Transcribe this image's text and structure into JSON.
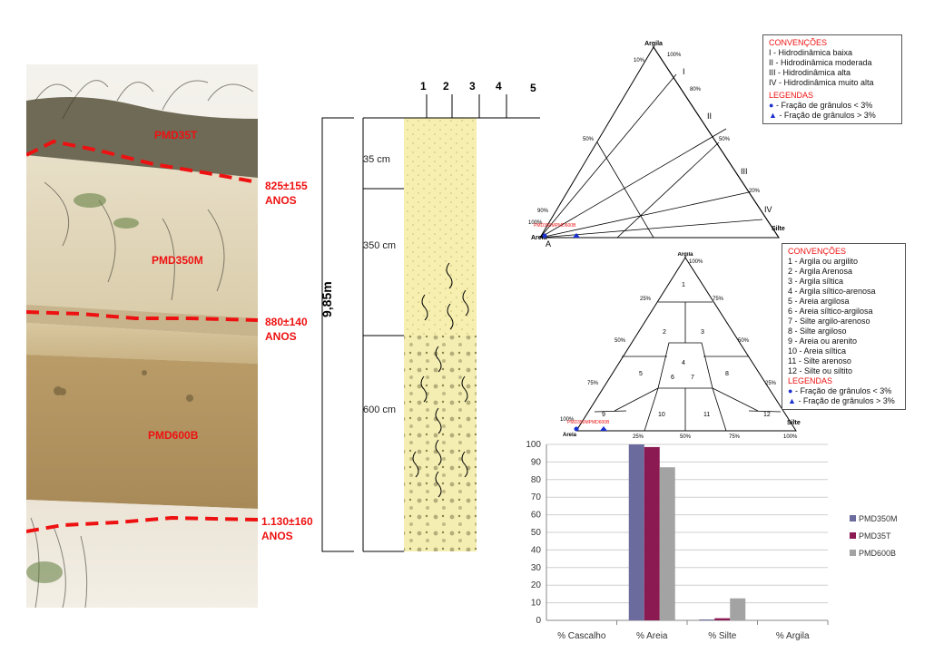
{
  "photo": {
    "samples": [
      "PMD35T",
      "PMD350M",
      "PMD600B"
    ],
    "ages": [
      {
        "value": "825±155",
        "unit": "ANOS"
      },
      {
        "value": "880±140",
        "unit": "ANOS"
      },
      {
        "value": "1.130±160",
        "unit": "ANOS"
      }
    ]
  },
  "column": {
    "total": "9,85m",
    "grain_scale": [
      "1",
      "2",
      "3",
      "4",
      "5"
    ],
    "layers": [
      {
        "thickness": "35 cm"
      },
      {
        "thickness": "350 cm"
      },
      {
        "thickness": "600 cm"
      }
    ]
  },
  "triangle1": {
    "top": "Argila",
    "left": "Areia",
    "right": "Silte",
    "zones": [
      "I",
      "II",
      "III",
      "IV"
    ],
    "corner_label": "A",
    "ticks_left": [
      "10%",
      "50%",
      "90%",
      "100%"
    ],
    "ticks_right": [
      "100%",
      "80%",
      "50%",
      "20%"
    ],
    "points_label": "PMD350MPMD600B"
  },
  "legend1": {
    "title": "CONVENÇÕES",
    "items": [
      "I - Hidrodinâmica baixa",
      "II - Hidrodinâmica moderada",
      "III - Hidrodinâmica alta",
      "IV - Hidrodinâmica muito alta"
    ],
    "legend_title": "LEGENDAS",
    "legend_items": [
      "- Fração de grânulos < 3%",
      "- Fração de grânulos > 3%"
    ]
  },
  "triangle2": {
    "top": "Argila",
    "left": "Areia",
    "right": "Silte",
    "fields": [
      "1",
      "2",
      "3",
      "4",
      "5",
      "6",
      "7",
      "8",
      "9",
      "10",
      "11",
      "12"
    ],
    "ticks_left": [
      "25%",
      "50%",
      "75%",
      "100%"
    ],
    "ticks_right": [
      "100%",
      "75%",
      "50%",
      "25%"
    ],
    "ticks_bottom": [
      "25%",
      "50%",
      "75%",
      "100%"
    ],
    "points_label": "PMD350MPMD600B"
  },
  "legend2": {
    "title": "CONVENÇÕES",
    "items": [
      "1 - Argila ou argilito",
      "2 - Argila Arenosa",
      "3 - Argila síltica",
      "4 - Argila síltico-arenosa",
      "5 - Areia argilosa",
      "6 - Areia síltico-argilosa",
      "7 - Silte argilo-arenoso",
      "8 - Silte argiloso",
      "9 - Areia ou arenito",
      "10 - Areia síltica",
      "11 - Silte arenoso",
      "12 - Silte ou siltito"
    ],
    "legend_title": "LEGENDAS",
    "legend_items": [
      "- Fração de grânulos < 3%",
      "- Fração de grânulos > 3%"
    ]
  },
  "chart_data": {
    "type": "bar",
    "categories": [
      "% Cascalho",
      "% Areia",
      "% Silte",
      "% Argila"
    ],
    "series": [
      {
        "name": "PMD350M",
        "color": "#6b6b9e",
        "values": [
          0,
          100,
          0.5,
          0
        ]
      },
      {
        "name": "PMD35T",
        "color": "#8b1a52",
        "values": [
          0,
          98.5,
          1.2,
          0
        ]
      },
      {
        "name": "PMD600B",
        "color": "#a3a3a3",
        "values": [
          0,
          87,
          12.5,
          0
        ]
      }
    ],
    "ylim": [
      0,
      100
    ],
    "yticks": [
      0,
      10,
      20,
      30,
      40,
      50,
      60,
      70,
      80,
      90,
      100
    ],
    "grid": true,
    "legend": "right"
  }
}
